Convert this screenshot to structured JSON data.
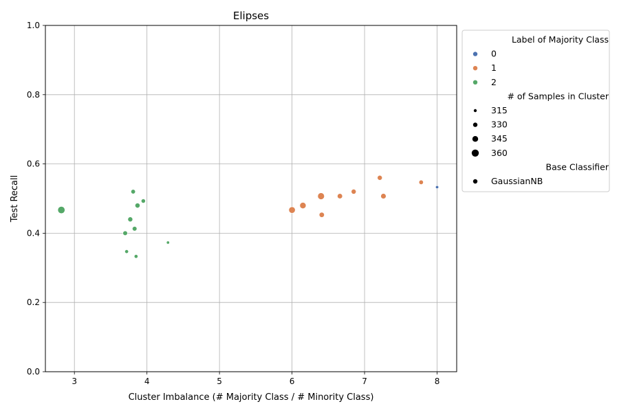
{
  "chart_data": {
    "type": "scatter",
    "title": "Elipses",
    "xlabel": "Cluster Imbalance (# Majority Class / # Minority Class)",
    "ylabel": "Test Recall",
    "xlim": [
      2.6,
      8.27
    ],
    "ylim": [
      0.0,
      1.0
    ],
    "xticks": [
      3,
      4,
      5,
      6,
      7,
      8
    ],
    "yticks": [
      0.0,
      0.2,
      0.4,
      0.6,
      0.8,
      1.0
    ],
    "xtick_labels": [
      "3",
      "4",
      "5",
      "6",
      "7",
      "8"
    ],
    "ytick_labels": [
      "0.0",
      "0.2",
      "0.4",
      "0.6",
      "0.8",
      "1.0"
    ],
    "grid": true,
    "legend_position": "outside-right",
    "legend": {
      "hue_title": "Label of Majority Class",
      "hue_entries": [
        {
          "label": "0",
          "color": "#4c72b0"
        },
        {
          "label": "1",
          "color": "#dd8452"
        },
        {
          "label": "2",
          "color": "#55a868"
        }
      ],
      "size_title": "# of Samples in Cluster",
      "size_entries": [
        {
          "label": "315",
          "size": 315
        },
        {
          "label": "330",
          "size": 330
        },
        {
          "label": "345",
          "size": 345
        },
        {
          "label": "360",
          "size": 360
        }
      ],
      "style_title": "Base Classifier",
      "style_entries": [
        {
          "label": "GaussianNB"
        }
      ]
    },
    "series": [
      {
        "name": "0",
        "color": "#4c72b0",
        "points": [
          {
            "x": 8.0,
            "y": 0.533,
            "size": 315
          }
        ]
      },
      {
        "name": "1",
        "color": "#dd8452",
        "points": [
          {
            "x": 7.21,
            "y": 0.56,
            "size": 335
          },
          {
            "x": 7.78,
            "y": 0.547,
            "size": 330
          },
          {
            "x": 6.85,
            "y": 0.52,
            "size": 335
          },
          {
            "x": 7.26,
            "y": 0.507,
            "size": 340
          },
          {
            "x": 6.66,
            "y": 0.507,
            "size": 338
          },
          {
            "x": 6.4,
            "y": 0.507,
            "size": 355
          },
          {
            "x": 6.15,
            "y": 0.48,
            "size": 350
          },
          {
            "x": 6.0,
            "y": 0.467,
            "size": 352
          },
          {
            "x": 6.41,
            "y": 0.453,
            "size": 338
          }
        ]
      },
      {
        "name": "2",
        "color": "#55a868",
        "points": [
          {
            "x": 3.81,
            "y": 0.52,
            "size": 330
          },
          {
            "x": 3.95,
            "y": 0.493,
            "size": 328
          },
          {
            "x": 3.87,
            "y": 0.48,
            "size": 335
          },
          {
            "x": 2.82,
            "y": 0.467,
            "size": 360
          },
          {
            "x": 3.77,
            "y": 0.44,
            "size": 335
          },
          {
            "x": 3.83,
            "y": 0.413,
            "size": 332
          },
          {
            "x": 3.7,
            "y": 0.4,
            "size": 332
          },
          {
            "x": 3.72,
            "y": 0.347,
            "size": 322
          },
          {
            "x": 3.85,
            "y": 0.333,
            "size": 322
          },
          {
            "x": 4.29,
            "y": 0.373,
            "size": 315
          }
        ]
      }
    ]
  }
}
